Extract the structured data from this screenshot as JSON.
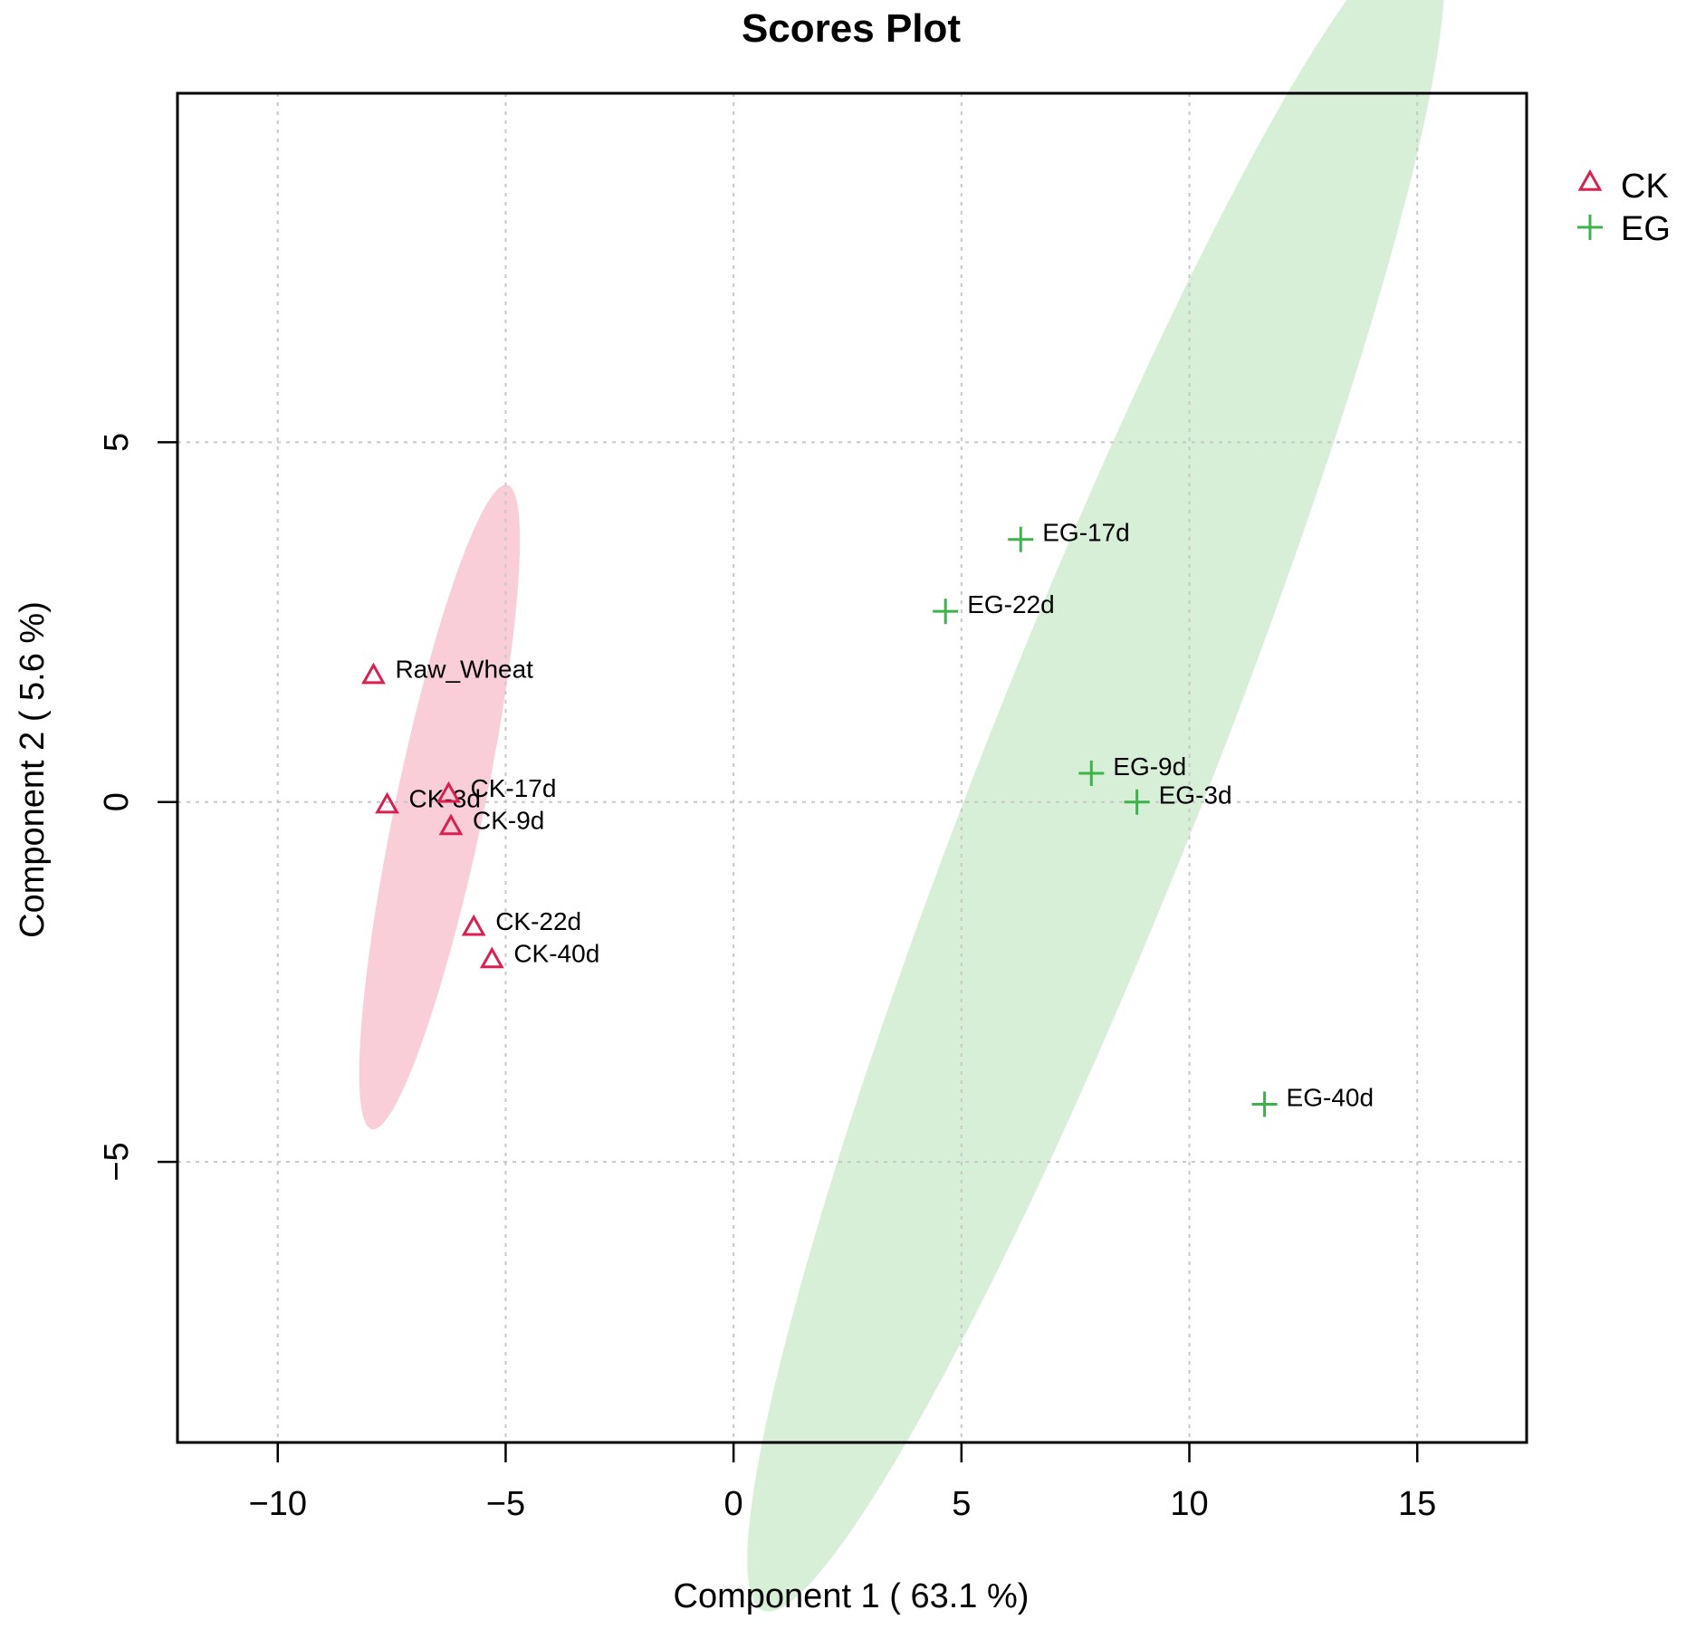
{
  "chart_data": {
    "type": "scatter",
    "title": "Scores Plot",
    "xlabel": "Component 1 ( 63.1 %)",
    "ylabel": "Component 2 ( 5.6 %)",
    "xlim": [
      -12.2,
      17.4
    ],
    "ylim": [
      -8.9,
      9.85
    ],
    "xticks": [
      -10,
      -5,
      0,
      5,
      10,
      15
    ],
    "xtick_labels": [
      "−10",
      "−5",
      "0",
      "5",
      "10",
      "15"
    ],
    "yticks": [
      -5,
      0,
      5
    ],
    "ytick_labels": [
      "−5",
      "0",
      "5"
    ],
    "grid": true,
    "legend_position": "top-right outside",
    "series": [
      {
        "name": "CK",
        "marker": "triangle",
        "color": "#dc1e50",
        "fill_color": "#f4a6b8",
        "ellipse": {
          "cx": -6.45,
          "cy": -0.07,
          "semi_major": 4.72,
          "semi_minor": 0.94,
          "angle_deg": 71.2
        },
        "points": [
          {
            "label": "Raw_Wheat",
            "x": -7.9,
            "y": 1.75
          },
          {
            "label": "CK-3d",
            "x": -7.6,
            "y": -0.05
          },
          {
            "label": "CK-17d",
            "x": -6.25,
            "y": 0.1
          },
          {
            "label": "CK-9d",
            "x": -6.2,
            "y": -0.35
          },
          {
            "label": "CK-22d",
            "x": -5.7,
            "y": -1.75
          },
          {
            "label": "CK-40d",
            "x": -5.3,
            "y": -2.2
          }
        ]
      },
      {
        "name": "EG",
        "marker": "plus",
        "color": "#3cb44b",
        "fill_color": "#b4e1b4",
        "ellipse": {
          "cx": 7.95,
          "cy": 0.45,
          "semi_major": 13.8,
          "semi_minor": 2.23,
          "angle_deg": 57.5
        },
        "points": [
          {
            "label": "EG-17d",
            "x": 6.3,
            "y": 3.65
          },
          {
            "label": "EG-22d",
            "x": 4.65,
            "y": 2.65
          },
          {
            "label": "EG-9d",
            "x": 7.85,
            "y": 0.4
          },
          {
            "label": "EG-3d",
            "x": 8.85,
            "y": 0.0
          },
          {
            "label": "EG-40d",
            "x": 11.65,
            "y": -4.2
          }
        ]
      }
    ]
  }
}
